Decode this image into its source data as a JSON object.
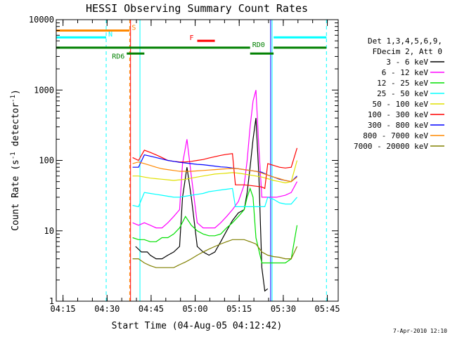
{
  "chart_data": {
    "type": "line",
    "title": "HESSI Observing Summary Count Rates",
    "xlabel": "Start Time (04-Aug-05 04:12:42)",
    "ylabel_main": "Count Rate (s",
    "ylabel_sup1": "-1",
    "ylabel_mid": " detector",
    "ylabel_sup2": "-1",
    "ylabel_end": ")",
    "yscale": "log",
    "ylim": [
      1,
      10000
    ],
    "xlim_minutes": [
      0,
      96
    ],
    "yticks": [
      1,
      10,
      100,
      1000,
      10000
    ],
    "ytick_labels": [
      "1",
      "10",
      "100",
      "1000",
      "10000"
    ],
    "xticks_minutes": [
      2.3,
      17.3,
      32.3,
      47.3,
      62.3,
      77.3,
      92.3
    ],
    "xtick_labels": [
      "04:15",
      "04:30",
      "04:45",
      "05:00",
      "05:15",
      "05:30",
      "05:45"
    ],
    "legend_header": [
      "Det 1,3,4,5,6,9,",
      "FDecim 2, Att 0"
    ],
    "footer": "7-Apr-2010 12:10",
    "series": [
      {
        "name": "3 - 6 keV",
        "color": "#000000",
        "points": [
          [
            27,
            6
          ],
          [
            29,
            5
          ],
          [
            31,
            5
          ],
          [
            32,
            4.5
          ],
          [
            34,
            4
          ],
          [
            36,
            4
          ],
          [
            38,
            4.5
          ],
          [
            40,
            5
          ],
          [
            42,
            6
          ],
          [
            43,
            30
          ],
          [
            44.5,
            80
          ],
          [
            46,
            30
          ],
          [
            48,
            6
          ],
          [
            50,
            5
          ],
          [
            52,
            4.5
          ],
          [
            54,
            5
          ],
          [
            56,
            7
          ],
          [
            58,
            10
          ],
          [
            60,
            14
          ],
          [
            62,
            18
          ],
          [
            64,
            20
          ],
          [
            65,
            35
          ],
          [
            66,
            80
          ],
          [
            67,
            200
          ],
          [
            68,
            400
          ],
          [
            69,
            60
          ],
          [
            70,
            3
          ],
          [
            71,
            1.4
          ],
          [
            72,
            1.5
          ]
        ]
      },
      {
        "name": "6 - 12 keV",
        "color": "#ff00ff",
        "points": [
          [
            26,
            13
          ],
          [
            28,
            12
          ],
          [
            30,
            13
          ],
          [
            32,
            12
          ],
          [
            34,
            11
          ],
          [
            36,
            11
          ],
          [
            38,
            13
          ],
          [
            40,
            16
          ],
          [
            42,
            20
          ],
          [
            43,
            90
          ],
          [
            44.5,
            200
          ],
          [
            46,
            60
          ],
          [
            48,
            13
          ],
          [
            50,
            11
          ],
          [
            52,
            11
          ],
          [
            54,
            11
          ],
          [
            56,
            13
          ],
          [
            58,
            16
          ],
          [
            60,
            20
          ],
          [
            62,
            26
          ],
          [
            64,
            45
          ],
          [
            65,
            100
          ],
          [
            66,
            300
          ],
          [
            67,
            700
          ],
          [
            68,
            1000
          ],
          [
            69,
            150
          ],
          [
            70,
            30
          ],
          [
            72,
            30
          ],
          [
            75,
            30
          ],
          [
            78,
            32
          ],
          [
            80,
            35
          ],
          [
            82,
            50
          ]
        ]
      },
      {
        "name": "12 - 25 keV",
        "color": "#00e000",
        "points": [
          [
            26,
            8
          ],
          [
            28,
            7.5
          ],
          [
            30,
            7.5
          ],
          [
            32,
            7
          ],
          [
            34,
            7
          ],
          [
            36,
            8
          ],
          [
            38,
            8
          ],
          [
            40,
            9
          ],
          [
            42,
            11
          ],
          [
            44,
            16
          ],
          [
            46,
            12
          ],
          [
            48,
            10
          ],
          [
            50,
            9
          ],
          [
            52,
            8.5
          ],
          [
            54,
            8.5
          ],
          [
            56,
            9
          ],
          [
            58,
            11
          ],
          [
            60,
            13
          ],
          [
            62,
            16
          ],
          [
            64,
            20
          ],
          [
            65,
            30
          ],
          [
            66,
            40
          ],
          [
            67,
            30
          ],
          [
            68,
            8
          ],
          [
            70,
            3.5
          ],
          [
            72,
            3.5
          ],
          [
            75,
            3.5
          ],
          [
            78,
            3.5
          ],
          [
            80,
            4
          ],
          [
            82,
            12
          ]
        ]
      },
      {
        "name": "25 - 50 keV",
        "color": "#00ffff",
        "points": [
          [
            26,
            23
          ],
          [
            28,
            22
          ],
          [
            30,
            35
          ],
          [
            32,
            34
          ],
          [
            34,
            33
          ],
          [
            36,
            32
          ],
          [
            38,
            31
          ],
          [
            40,
            30
          ],
          [
            42,
            30
          ],
          [
            44,
            31
          ],
          [
            46,
            32
          ],
          [
            48,
            33
          ],
          [
            50,
            34
          ],
          [
            52,
            36
          ],
          [
            54,
            37
          ],
          [
            56,
            38
          ],
          [
            58,
            39
          ],
          [
            60,
            40
          ],
          [
            61,
            22
          ],
          [
            62,
            22
          ],
          [
            64,
            22
          ],
          [
            66,
            22
          ],
          [
            68,
            22
          ],
          [
            70,
            22
          ],
          [
            71,
            22
          ],
          [
            72,
            30
          ],
          [
            74,
            28
          ],
          [
            76,
            25
          ],
          [
            78,
            24
          ],
          [
            80,
            24
          ],
          [
            82,
            30
          ]
        ]
      },
      {
        "name": "50 - 100 keV",
        "color": "#e0e000",
        "points": [
          [
            26,
            60
          ],
          [
            28,
            60
          ],
          [
            30,
            58
          ],
          [
            32,
            56
          ],
          [
            34,
            55
          ],
          [
            36,
            54
          ],
          [
            38,
            53
          ],
          [
            40,
            52
          ],
          [
            42,
            53
          ],
          [
            44,
            54
          ],
          [
            46,
            56
          ],
          [
            48,
            58
          ],
          [
            50,
            60
          ],
          [
            52,
            62
          ],
          [
            54,
            64
          ],
          [
            56,
            65
          ],
          [
            58,
            66
          ],
          [
            60,
            67
          ],
          [
            62,
            66
          ],
          [
            64,
            64
          ],
          [
            66,
            62
          ],
          [
            68,
            60
          ],
          [
            70,
            58
          ],
          [
            72,
            55
          ],
          [
            74,
            52
          ],
          [
            76,
            50
          ],
          [
            78,
            48
          ],
          [
            80,
            50
          ],
          [
            82,
            100
          ]
        ]
      },
      {
        "name": "100 - 300 keV",
        "color": "#ff0000",
        "points": [
          [
            26,
            110
          ],
          [
            28,
            100
          ],
          [
            30,
            140
          ],
          [
            32,
            130
          ],
          [
            34,
            120
          ],
          [
            36,
            110
          ],
          [
            38,
            100
          ],
          [
            40,
            97
          ],
          [
            42,
            95
          ],
          [
            44,
            95
          ],
          [
            46,
            97
          ],
          [
            48,
            100
          ],
          [
            50,
            103
          ],
          [
            52,
            108
          ],
          [
            54,
            113
          ],
          [
            56,
            118
          ],
          [
            58,
            122
          ],
          [
            60,
            125
          ],
          [
            61,
            45
          ],
          [
            62,
            45
          ],
          [
            64,
            45
          ],
          [
            66,
            44
          ],
          [
            68,
            43
          ],
          [
            70,
            42
          ],
          [
            71,
            40
          ],
          [
            72,
            90
          ],
          [
            74,
            85
          ],
          [
            76,
            80
          ],
          [
            78,
            78
          ],
          [
            80,
            80
          ],
          [
            82,
            150
          ]
        ]
      },
      {
        "name": "300 - 800 keV",
        "color": "#0000ff",
        "points": [
          [
            26,
            80
          ],
          [
            28,
            80
          ],
          [
            30,
            120
          ],
          [
            32,
            115
          ],
          [
            34,
            110
          ],
          [
            36,
            105
          ],
          [
            38,
            100
          ],
          [
            40,
            97
          ],
          [
            42,
            94
          ],
          [
            44,
            92
          ],
          [
            46,
            90
          ],
          [
            48,
            88
          ],
          [
            50,
            87
          ],
          [
            52,
            85
          ],
          [
            54,
            83
          ],
          [
            56,
            81
          ],
          [
            58,
            80
          ],
          [
            60,
            78
          ],
          [
            62,
            76
          ],
          [
            64,
            74
          ],
          [
            66,
            72
          ],
          [
            68,
            70
          ],
          [
            70,
            68
          ],
          [
            72,
            62
          ],
          [
            74,
            58
          ],
          [
            76,
            54
          ],
          [
            78,
            52
          ],
          [
            80,
            50
          ],
          [
            82,
            60
          ]
        ]
      },
      {
        "name": "800 - 7000 keV",
        "color": "#ff8800",
        "points": [
          [
            26,
            90
          ],
          [
            28,
            95
          ],
          [
            30,
            90
          ],
          [
            32,
            85
          ],
          [
            34,
            80
          ],
          [
            36,
            76
          ],
          [
            38,
            74
          ],
          [
            40,
            72
          ],
          [
            42,
            70
          ],
          [
            44,
            70
          ],
          [
            46,
            70
          ],
          [
            48,
            71
          ],
          [
            50,
            72
          ],
          [
            52,
            73
          ],
          [
            54,
            74
          ],
          [
            56,
            75
          ],
          [
            58,
            76
          ],
          [
            60,
            77
          ],
          [
            62,
            76
          ],
          [
            64,
            74
          ],
          [
            66,
            72
          ],
          [
            68,
            70
          ],
          [
            70,
            66
          ],
          [
            72,
            62
          ],
          [
            74,
            58
          ],
          [
            76,
            55
          ],
          [
            78,
            52
          ],
          [
            80,
            50
          ],
          [
            82,
            58
          ]
        ]
      },
      {
        "name": "7000 - 20000 keV",
        "color": "#808000",
        "points": [
          [
            26,
            4
          ],
          [
            28,
            4
          ],
          [
            30,
            3.5
          ],
          [
            32,
            3.2
          ],
          [
            34,
            3
          ],
          [
            36,
            3
          ],
          [
            38,
            3
          ],
          [
            40,
            3
          ],
          [
            42,
            3.3
          ],
          [
            44,
            3.6
          ],
          [
            46,
            4
          ],
          [
            48,
            4.5
          ],
          [
            50,
            5
          ],
          [
            52,
            5.5
          ],
          [
            54,
            6
          ],
          [
            56,
            6.5
          ],
          [
            58,
            7
          ],
          [
            60,
            7.5
          ],
          [
            62,
            7.5
          ],
          [
            64,
            7.5
          ],
          [
            66,
            7
          ],
          [
            68,
            6.5
          ],
          [
            70,
            5
          ],
          [
            72,
            4.5
          ],
          [
            74,
            4.3
          ],
          [
            76,
            4.2
          ],
          [
            78,
            4
          ],
          [
            80,
            4
          ],
          [
            82,
            6
          ]
        ]
      }
    ],
    "flag_bars": [
      {
        "label": "S",
        "color": "#ff8800",
        "y": 7000,
        "segments": [
          [
            0,
            25
          ]
        ]
      },
      {
        "label": "N",
        "color": "#00ffff",
        "y": 5600,
        "segments": [
          [
            0,
            17
          ],
          [
            74,
            92
          ]
        ]
      },
      {
        "label": "RD0",
        "color": "#008000",
        "y": 4000,
        "segments": [
          [
            0,
            66
          ],
          [
            74,
            92
          ]
        ]
      },
      {
        "label": "RD6",
        "color": "#008000",
        "y": 3300,
        "segments": [
          [
            24,
            30
          ],
          [
            66,
            74
          ]
        ]
      },
      {
        "label": "F",
        "color": "#ff0000",
        "y": 5000,
        "segments": [
          [
            48,
            54
          ]
        ]
      }
    ],
    "vlines_solid": [
      [
        0,
        "#00ffff"
      ],
      [
        28.5,
        "#00ffff"
      ],
      [
        73.5,
        "#00ffff"
      ],
      [
        25.3,
        "#ff0000"
      ],
      [
        73,
        "#0000ff"
      ]
    ],
    "vlines_dashed": [
      [
        17,
        "#00ffff"
      ],
      [
        25,
        "#ff8800"
      ],
      [
        92,
        "#00ffff"
      ]
    ]
  }
}
